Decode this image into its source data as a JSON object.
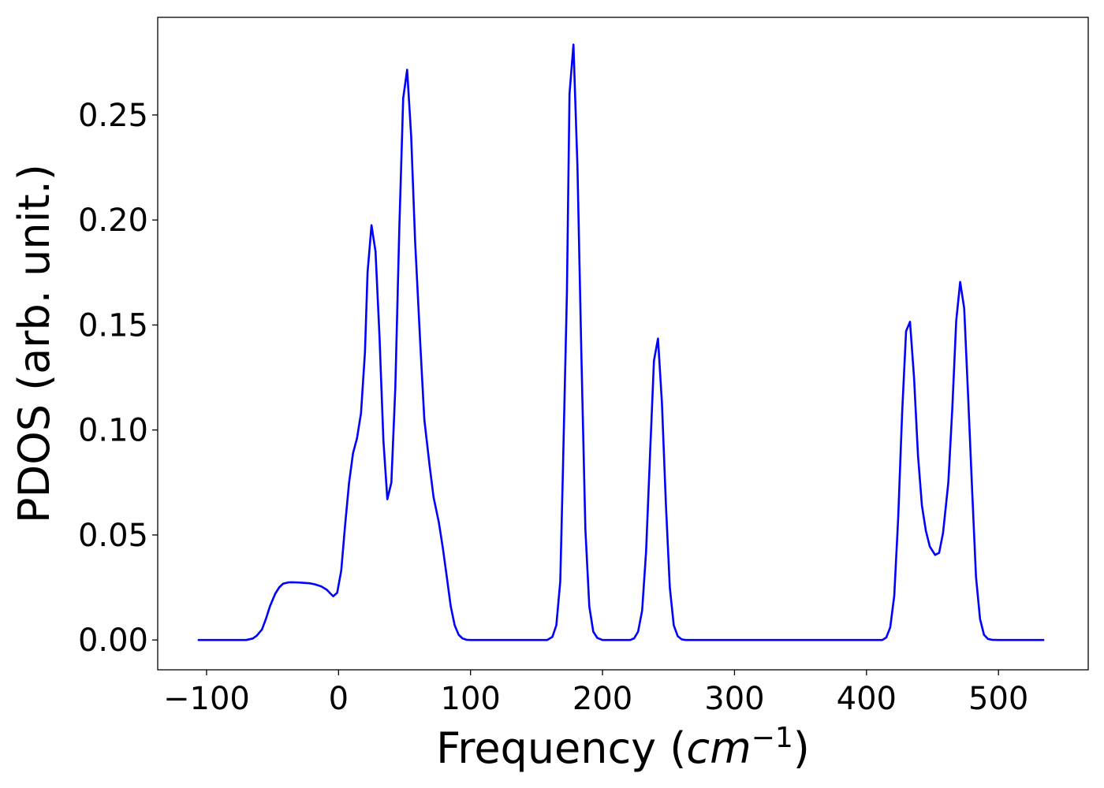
{
  "chart_data": {
    "type": "line",
    "title": "",
    "xlabel": "Frequency (",
    "xlabel_math": "cm",
    "xlabel_sup": "−1",
    "xlabel_close": ")",
    "ylabel": "PDOS (arb. unit.)",
    "xlim": [
      -137,
      568
    ],
    "ylim": [
      -0.0142,
      0.2965
    ],
    "grid": false,
    "legend": "none",
    "line_color": "#0000ff",
    "x_ticks": [
      {
        "value": -100,
        "label": "−100"
      },
      {
        "value": 0,
        "label": "0"
      },
      {
        "value": 100,
        "label": "100"
      },
      {
        "value": 200,
        "label": "200"
      },
      {
        "value": 300,
        "label": "300"
      },
      {
        "value": 400,
        "label": "400"
      },
      {
        "value": 500,
        "label": "500"
      }
    ],
    "y_ticks": [
      {
        "value": 0.0,
        "label": "0.00"
      },
      {
        "value": 0.05,
        "label": "0.05"
      },
      {
        "value": 0.1,
        "label": "0.10"
      },
      {
        "value": 0.15,
        "label": "0.15"
      },
      {
        "value": 0.2,
        "label": "0.20"
      },
      {
        "value": 0.25,
        "label": "0.25"
      }
    ],
    "series": [
      {
        "points": [
          [
            -106,
            0.0
          ],
          [
            -70,
            0.0
          ],
          [
            -65,
            0.0007
          ],
          [
            -62,
            0.002
          ],
          [
            -58,
            0.005
          ],
          [
            -55,
            0.01
          ],
          [
            -52,
            0.016
          ],
          [
            -48,
            0.022
          ],
          [
            -45,
            0.025
          ],
          [
            -42,
            0.0268
          ],
          [
            -38,
            0.0274
          ],
          [
            -35,
            0.0275
          ],
          [
            -28,
            0.0273
          ],
          [
            -22,
            0.027
          ],
          [
            -18,
            0.0265
          ],
          [
            -13,
            0.0255
          ],
          [
            -9,
            0.024
          ],
          [
            -6,
            0.022
          ],
          [
            -4,
            0.0208
          ],
          [
            -1,
            0.0225
          ],
          [
            2,
            0.033
          ],
          [
            5,
            0.055
          ],
          [
            8,
            0.075
          ],
          [
            11,
            0.089
          ],
          [
            14,
            0.096
          ],
          [
            17,
            0.108
          ],
          [
            20,
            0.137
          ],
          [
            22,
            0.175
          ],
          [
            25,
            0.1975
          ],
          [
            28,
            0.185
          ],
          [
            31,
            0.145
          ],
          [
            34,
            0.095
          ],
          [
            37,
            0.067
          ],
          [
            40,
            0.075
          ],
          [
            43,
            0.12
          ],
          [
            46,
            0.195
          ],
          [
            49,
            0.258
          ],
          [
            52,
            0.2715
          ],
          [
            55,
            0.24
          ],
          [
            58,
            0.19
          ],
          [
            62,
            0.14
          ],
          [
            65,
            0.105
          ],
          [
            69,
            0.083
          ],
          [
            72,
            0.068
          ],
          [
            76,
            0.056
          ],
          [
            79,
            0.044
          ],
          [
            82,
            0.03
          ],
          [
            85,
            0.016
          ],
          [
            88,
            0.007
          ],
          [
            91,
            0.0025
          ],
          [
            94,
            0.0007
          ],
          [
            97,
            0.0001
          ],
          [
            100,
            0.0
          ],
          [
            158,
            0.0
          ],
          [
            162,
            0.0015
          ],
          [
            165,
            0.007
          ],
          [
            168,
            0.028
          ],
          [
            170,
            0.08
          ],
          [
            173,
            0.165
          ],
          [
            175,
            0.26
          ],
          [
            178,
            0.2835
          ],
          [
            181,
            0.225
          ],
          [
            184,
            0.135
          ],
          [
            187,
            0.053
          ],
          [
            190,
            0.016
          ],
          [
            193,
            0.004
          ],
          [
            196,
            0.001
          ],
          [
            200,
            0.0
          ],
          [
            221,
            0.0
          ],
          [
            224,
            0.0008
          ],
          [
            227,
            0.004
          ],
          [
            230,
            0.014
          ],
          [
            233,
            0.042
          ],
          [
            236,
            0.088
          ],
          [
            239,
            0.133
          ],
          [
            242,
            0.1435
          ],
          [
            245,
            0.113
          ],
          [
            248,
            0.065
          ],
          [
            251,
            0.025
          ],
          [
            254,
            0.007
          ],
          [
            257,
            0.0018
          ],
          [
            260,
            0.0003
          ],
          [
            263,
            0.0
          ],
          [
            412,
            0.0
          ],
          [
            415,
            0.0012
          ],
          [
            418,
            0.006
          ],
          [
            421,
            0.021
          ],
          [
            424,
            0.058
          ],
          [
            427,
            0.108
          ],
          [
            430,
            0.147
          ],
          [
            433,
            0.1515
          ],
          [
            436,
            0.125
          ],
          [
            439,
            0.088
          ],
          [
            442,
            0.064
          ],
          [
            445,
            0.052
          ],
          [
            448,
            0.0445
          ],
          [
            452,
            0.0405
          ],
          [
            455,
            0.0415
          ],
          [
            458,
            0.051
          ],
          [
            462,
            0.075
          ],
          [
            465,
            0.11
          ],
          [
            468,
            0.152
          ],
          [
            471,
            0.1705
          ],
          [
            474,
            0.158
          ],
          [
            477,
            0.116
          ],
          [
            480,
            0.072
          ],
          [
            483,
            0.03
          ],
          [
            486,
            0.01
          ],
          [
            489,
            0.0025
          ],
          [
            492,
            0.0005
          ],
          [
            495,
            0.0001
          ],
          [
            500,
            0.0
          ],
          [
            534,
            0.0
          ]
        ]
      }
    ]
  }
}
